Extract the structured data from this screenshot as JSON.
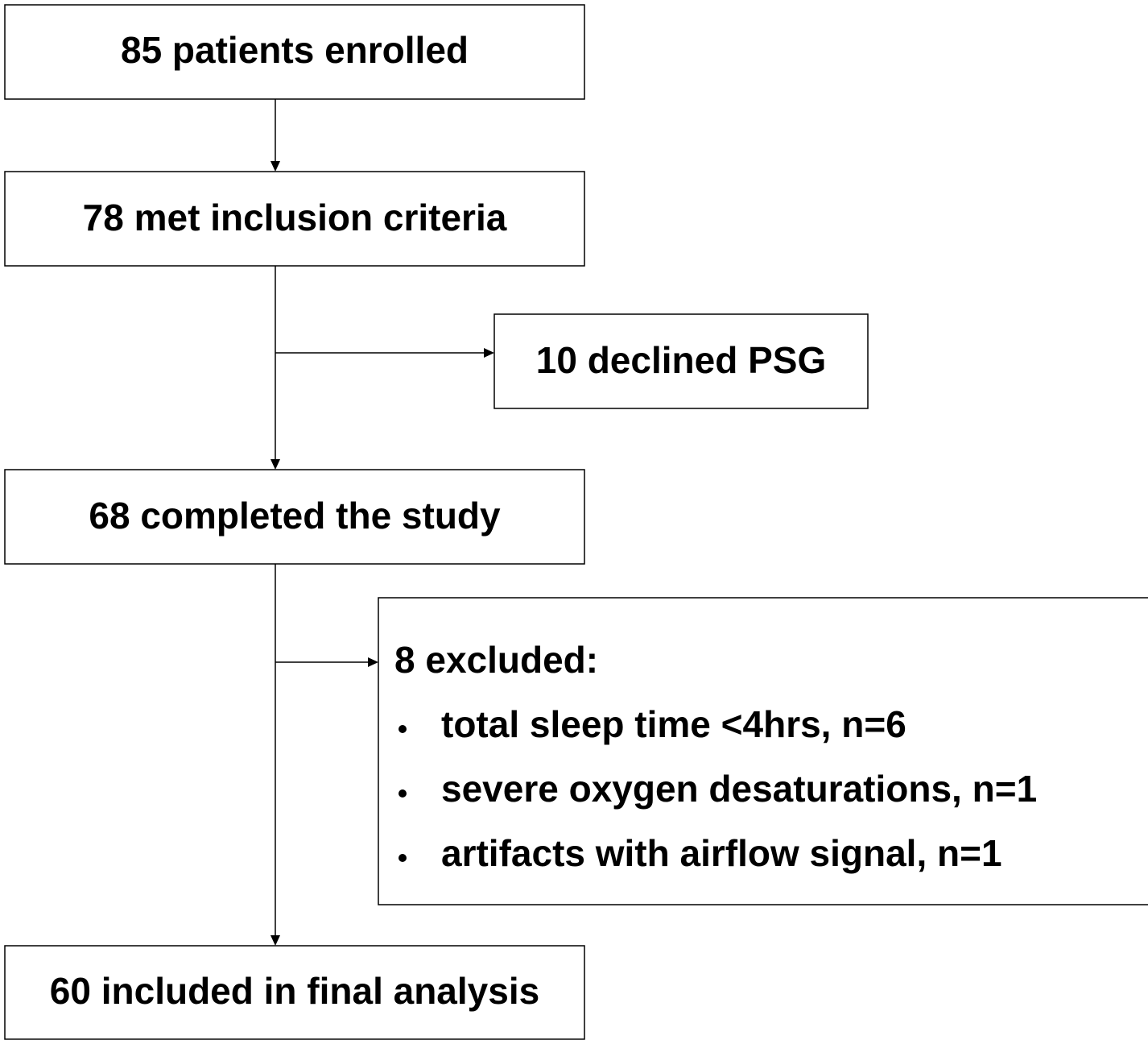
{
  "nodes": [
    {
      "label": "85 patients enrolled"
    },
    {
      "label": "78 met inclusion criteria"
    },
    {
      "label": "10 declined PSG"
    },
    {
      "label": "68 completed the study"
    },
    {
      "label": "8 excluded:",
      "items": [
        "total sleep time <4hrs, n=6",
        "severe oxygen desaturations, n=1",
        "artifacts with airflow signal, n=1"
      ]
    },
    {
      "label": "60 included in final analysis"
    }
  ]
}
